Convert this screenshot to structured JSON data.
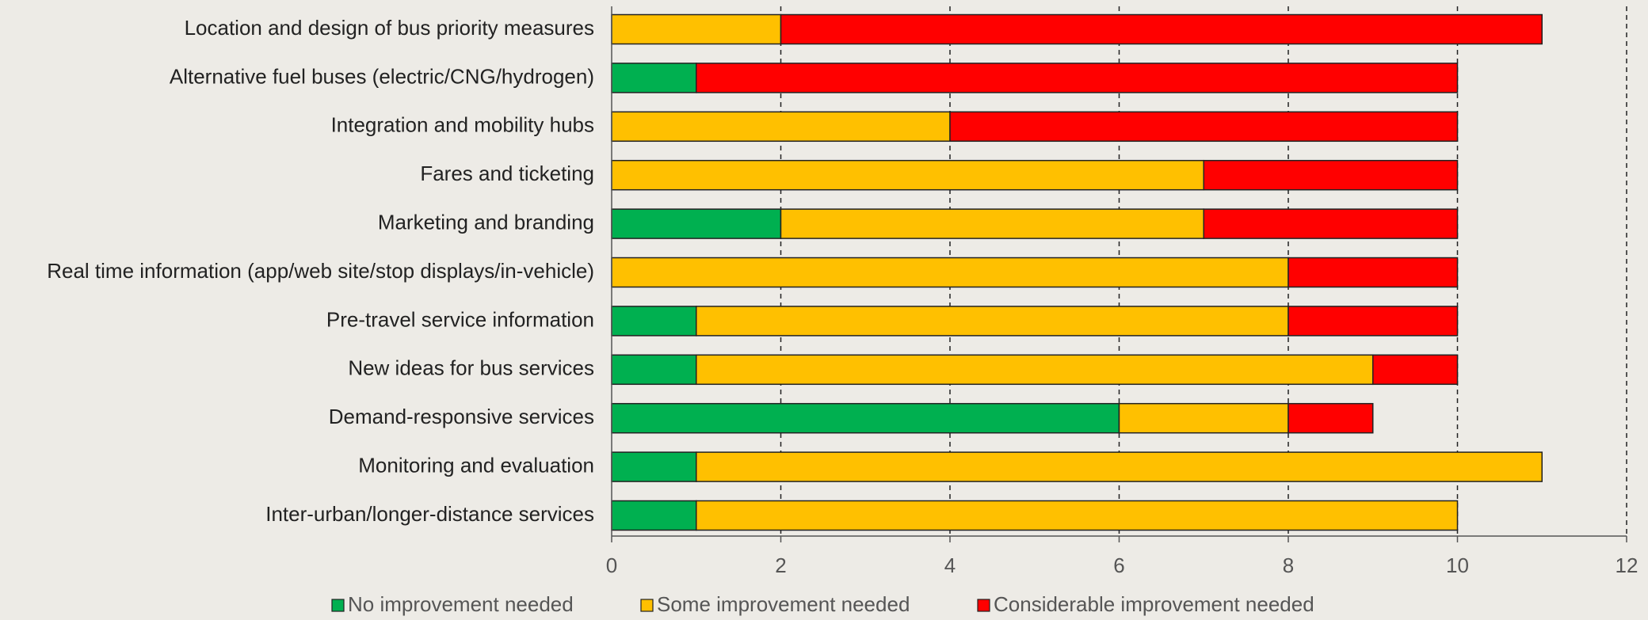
{
  "chart_data": {
    "type": "stacked_barh",
    "categories": [
      "Location and design of bus priority measures",
      "Alternative fuel buses (electric/CNG/hydrogen)",
      "Integration and mobility hubs",
      "Fares and ticketing",
      "Marketing and branding",
      "Real time information (app/web site/stop displays/in-vehicle)",
      "Pre-travel service information",
      "New ideas for bus services",
      "Demand-responsive services",
      "Monitoring and evaluation",
      "Inter-urban/longer-distance services"
    ],
    "series": [
      {
        "name": "No improvement needed",
        "color": "#00b050",
        "values": [
          0,
          1,
          0,
          0,
          2,
          0,
          1,
          1,
          6,
          1,
          1
        ]
      },
      {
        "name": "Some improvement needed",
        "color": "#ffc000",
        "values": [
          2,
          0,
          4,
          7,
          5,
          8,
          7,
          8,
          2,
          10,
          9
        ]
      },
      {
        "name": "Considerable improvement needed",
        "color": "#ff0000",
        "values": [
          9,
          9,
          6,
          3,
          3,
          2,
          2,
          1,
          1,
          0,
          0
        ]
      }
    ],
    "xlim": [
      0,
      12
    ],
    "xticks": [
      0,
      2,
      4,
      6,
      8,
      10,
      12
    ],
    "grid": true,
    "legend": "bottom"
  }
}
